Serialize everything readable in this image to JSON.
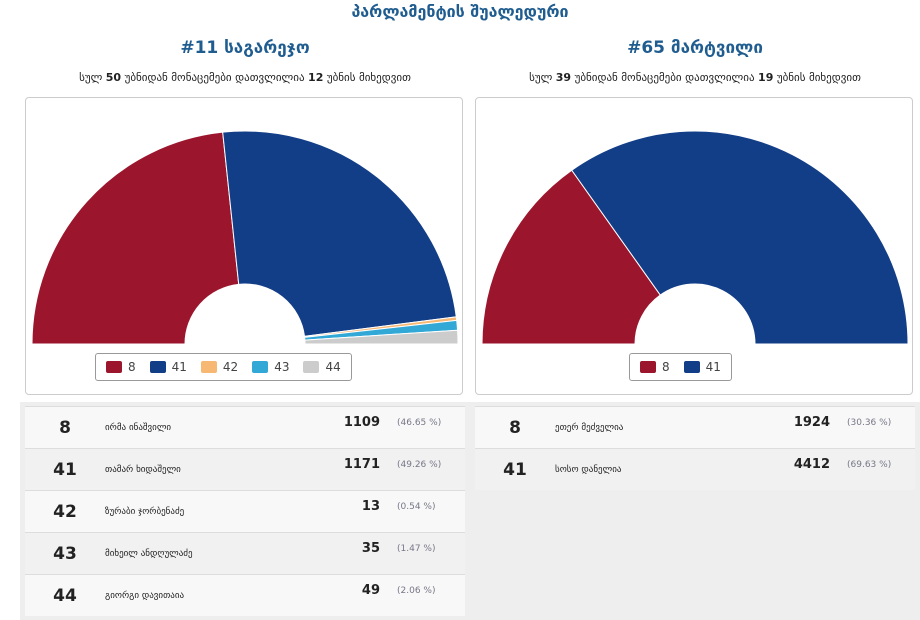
{
  "page_title": "პარლამენტის შუალედური",
  "colors": {
    "8": "#9b162d",
    "41": "#123d87",
    "42": "#f7b874",
    "43": "#31a8d6",
    "44": "#cccccc"
  },
  "districts": [
    {
      "heading": "#11 საგარეჯო",
      "sub_pre": "სულ",
      "total": "50",
      "sub_mid": "უბნიდან მონაცემები დათვლილია",
      "counted": "12",
      "sub_post": "უბნის მიხედვით",
      "candidates": [
        {
          "num": "8",
          "name": "ირმა ინაშვილი",
          "votes": "1109",
          "pct": "(46.65 %)",
          "share": 46.65
        },
        {
          "num": "41",
          "name": "თამარ ხიდაშელი",
          "votes": "1171",
          "pct": "(49.26 %)",
          "share": 49.26
        },
        {
          "num": "42",
          "name": "ზურაბი ჯორბენაძე",
          "votes": "13",
          "pct": "(0.54 %)",
          "share": 0.54
        },
        {
          "num": "43",
          "name": "მიხეილ ანდღულაძე",
          "votes": "35",
          "pct": "(1.47 %)",
          "share": 1.47
        },
        {
          "num": "44",
          "name": "გიორგი დავითაია",
          "votes": "49",
          "pct": "(2.06 %)",
          "share": 2.06
        }
      ]
    },
    {
      "heading": "#65 მარტვილი",
      "sub_pre": "სულ",
      "total": "39",
      "sub_mid": "უბნიდან მონაცემები დათვლილია",
      "counted": "19",
      "sub_post": "უბნის მიხედვით",
      "candidates": [
        {
          "num": "8",
          "name": "ეთერ მეძველია",
          "votes": "1924",
          "pct": "(30.36 %)",
          "share": 30.36
        },
        {
          "num": "41",
          "name": "სოსო დანელია",
          "votes": "4412",
          "pct": "(69.63 %)",
          "share": 69.63
        }
      ]
    }
  ]
}
